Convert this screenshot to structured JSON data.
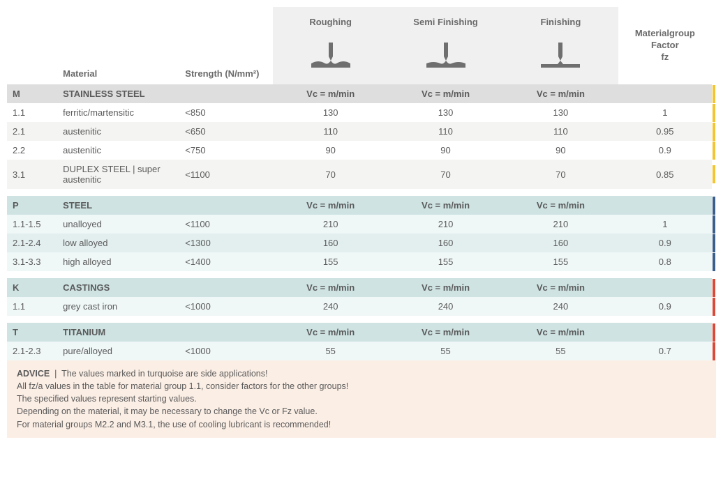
{
  "headers": {
    "material": "Material",
    "strength": "Strength (N/mm²)",
    "ops": [
      "Roughing",
      "Semi Finishing",
      "Finishing"
    ],
    "fz": "Materialgroup\nFactor\nfz",
    "vc_unit": "Vc = m/min"
  },
  "icon_color": "#6f6f6f",
  "groups": [
    {
      "code": "M",
      "title": "STAINLESS STEEL",
      "header_tint": "tint-m-head",
      "row_tints": [
        "tint-m-0",
        "tint-m-1"
      ],
      "stripe_color": "#f3c433",
      "rows": [
        {
          "code": "1.1",
          "material": "ferritic/martensitic",
          "strength": "<850",
          "ops": [
            "130",
            "130",
            "130"
          ],
          "fz": "1"
        },
        {
          "code": "2.1",
          "material": "austenitic",
          "strength": "<650",
          "ops": [
            "110",
            "110",
            "110"
          ],
          "fz": "0.95"
        },
        {
          "code": "2.2",
          "material": "austenitic",
          "strength": "<750",
          "ops": [
            "90",
            "90",
            "90"
          ],
          "fz": "0.9"
        },
        {
          "code": "3.1",
          "material": "DUPLEX STEEL | super austenitic",
          "strength": "<1100",
          "ops": [
            "70",
            "70",
            "70"
          ],
          "fz": "0.85"
        }
      ]
    },
    {
      "code": "P",
      "title": "STEEL",
      "header_tint": "tint-p-head",
      "row_tints": [
        "tint-p-0",
        "tint-p-1"
      ],
      "stripe_color": "#3c5f8a",
      "rows": [
        {
          "code": "1.1-1.5",
          "material": "unalloyed",
          "strength": "<1100",
          "ops": [
            "210",
            "210",
            "210"
          ],
          "fz": "1"
        },
        {
          "code": "2.1-2.4",
          "material": "low alloyed",
          "strength": "<1300",
          "ops": [
            "160",
            "160",
            "160"
          ],
          "fz": "0.9"
        },
        {
          "code": "3.1-3.3",
          "material": "high alloyed",
          "strength": "<1400",
          "ops": [
            "155",
            "155",
            "155"
          ],
          "fz": "0.8"
        }
      ]
    },
    {
      "code": "K",
      "title": "CASTINGS",
      "header_tint": "tint-k-head",
      "row_tints": [
        "tint-k-0",
        "tint-k-0"
      ],
      "stripe_color": "#d84b3a",
      "rows": [
        {
          "code": "1.1",
          "material": "grey cast iron",
          "strength": "<1000",
          "ops": [
            "240",
            "240",
            "240"
          ],
          "fz": "0.9"
        }
      ]
    },
    {
      "code": "T",
      "title": "TITANIUM",
      "header_tint": "tint-t-head",
      "row_tints": [
        "tint-t-0",
        "tint-t-0"
      ],
      "stripe_color": "#d84b3a",
      "rows": [
        {
          "code": "2.1-2.3",
          "material": "pure/alloyed",
          "strength": "<1000",
          "ops": [
            "55",
            "55",
            "55"
          ],
          "fz": "0.7"
        }
      ]
    }
  ],
  "advice": {
    "label": "ADVICE",
    "lines": [
      "The values marked in turquoise are side applications!",
      "All fz/a values in the table for material group 1.1, consider factors for the other groups!",
      "The specified values represent starting values.",
      "Depending on the material, it may be necessary to change the Vc or Fz value.",
      "For material groups M2.2 and M3.1, the use of cooling lubricant is recommended!"
    ]
  }
}
